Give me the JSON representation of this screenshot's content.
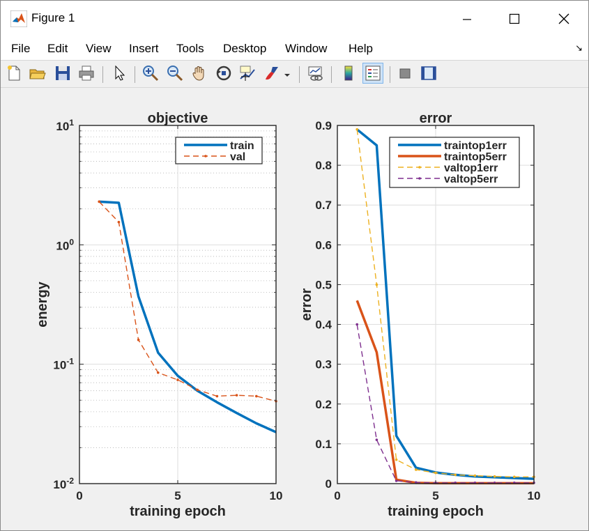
{
  "window": {
    "title": "Figure 1",
    "icon": "matlab-icon"
  },
  "menu": [
    "File",
    "Edit",
    "View",
    "Insert",
    "Tools",
    "Desktop",
    "Window",
    "Help"
  ],
  "toolbar": [
    "new-figure-icon",
    "open-file-icon",
    "save-icon",
    "print-icon",
    "edit-plot-icon",
    "zoom-in-icon",
    "zoom-out-icon",
    "pan-icon",
    "rotate-3d-icon",
    "data-cursor-icon",
    "brush-icon",
    "link-plot-icon",
    "colorbar-icon",
    "legend-icon",
    "hide-plot-tools-icon",
    "show-plot-tools-icon"
  ],
  "colors": {
    "train": "#0072bd",
    "train5": "#d95319",
    "val1": "#edb120",
    "val5": "#7e2f8e"
  },
  "chart_data": [
    {
      "type": "line",
      "title": "objective",
      "xlabel": "training epoch",
      "ylabel": "energy",
      "yscale": "log",
      "xlim": [
        0,
        10
      ],
      "ylim": [
        0.01,
        10
      ],
      "xticks": [
        "0",
        "5",
        "10"
      ],
      "grid": true,
      "legend_position": "top-right",
      "x": [
        1,
        2,
        3,
        4,
        5,
        6,
        7,
        8,
        9,
        10
      ],
      "series": [
        {
          "name": "train",
          "style": "solid",
          "color": "#0072bd",
          "values": [
            2.3,
            2.25,
            0.37,
            0.125,
            0.08,
            0.06,
            0.048,
            0.039,
            0.032,
            0.027
          ]
        },
        {
          "name": "val",
          "style": "dashed",
          "color": "#d95319",
          "values": [
            2.3,
            1.55,
            0.16,
            0.085,
            0.074,
            0.061,
            0.054,
            0.055,
            0.054,
            0.049
          ]
        }
      ]
    },
    {
      "type": "line",
      "title": "error",
      "xlabel": "training epoch",
      "ylabel": "error",
      "xlim": [
        0,
        10
      ],
      "ylim": [
        0,
        0.9
      ],
      "xticks": [
        "0",
        "5",
        "10"
      ],
      "yticks": [
        "0",
        "0.1",
        "0.2",
        "0.3",
        "0.4",
        "0.5",
        "0.6",
        "0.7",
        "0.8",
        "0.9"
      ],
      "grid": true,
      "legend_position": "top-right",
      "x": [
        1,
        2,
        3,
        4,
        5,
        6,
        7,
        8,
        9,
        10
      ],
      "series": [
        {
          "name": "traintop1err",
          "style": "solid",
          "color": "#0072bd",
          "values": [
            0.89,
            0.85,
            0.12,
            0.04,
            0.028,
            0.022,
            0.018,
            0.016,
            0.014,
            0.012
          ]
        },
        {
          "name": "traintop5err",
          "style": "solid",
          "color": "#d95319",
          "values": [
            0.46,
            0.33,
            0.01,
            0.002,
            0.001,
            0.001,
            0.001,
            0.001,
            0.001,
            0.001
          ]
        },
        {
          "name": "valtop1err",
          "style": "dashed",
          "color": "#edb120",
          "values": [
            0.89,
            0.5,
            0.06,
            0.035,
            0.027,
            0.022,
            0.02,
            0.018,
            0.017,
            0.017
          ]
        },
        {
          "name": "valtop5err",
          "style": "dashed",
          "color": "#7e2f8e",
          "values": [
            0.4,
            0.11,
            0.007,
            0.003,
            0.002,
            0.002,
            0.002,
            0.002,
            0.002,
            0.002
          ]
        }
      ]
    }
  ]
}
